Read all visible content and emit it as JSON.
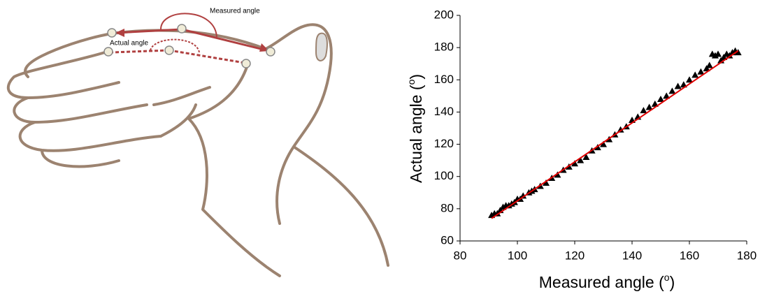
{
  "illustration": {
    "labels": [
      "Measured angle",
      "Actual angle"
    ]
  },
  "chart_data": {
    "type": "scatter",
    "x_label": [
      "Measured angle (",
      "o",
      ")"
    ],
    "y_label": [
      "Actual angle (",
      "o",
      ")"
    ],
    "xlim": [
      80,
      180
    ],
    "xticks": [
      80,
      100,
      120,
      140,
      160,
      180
    ],
    "ylim": [
      60,
      200
    ],
    "yticks": [
      60,
      80,
      100,
      120,
      140,
      160,
      180,
      200
    ],
    "grid": false,
    "series": [
      {
        "color": "#000000",
        "x": [
          91,
          92,
          93,
          94,
          95,
          96,
          97,
          98,
          99,
          100,
          101,
          102,
          104,
          105,
          106,
          108,
          110,
          112,
          114,
          116,
          118,
          120,
          122,
          124,
          126,
          128,
          130,
          132,
          134,
          136,
          138,
          140,
          142,
          144,
          146,
          148,
          150,
          152,
          154,
          156,
          158,
          160,
          162,
          164,
          166,
          167,
          168,
          169,
          170,
          171,
          172,
          173,
          174,
          175,
          176,
          177
        ],
        "values": [
          76,
          77,
          77,
          79,
          81,
          82,
          82,
          83,
          84,
          86,
          86,
          88,
          90,
          91,
          92,
          94,
          96,
          99,
          101,
          104,
          106,
          108,
          110,
          112,
          116,
          118,
          120,
          123,
          126,
          129,
          131,
          135,
          137,
          141,
          143,
          145,
          148,
          150,
          153,
          156,
          157,
          160,
          163,
          165,
          167,
          169,
          176,
          175,
          176,
          172,
          174,
          176,
          175,
          177,
          178,
          177
        ]
      }
    ],
    "fit": {
      "color": "#e00000",
      "x": [
        91,
        177
      ],
      "y": [
        74,
        178
      ]
    }
  }
}
